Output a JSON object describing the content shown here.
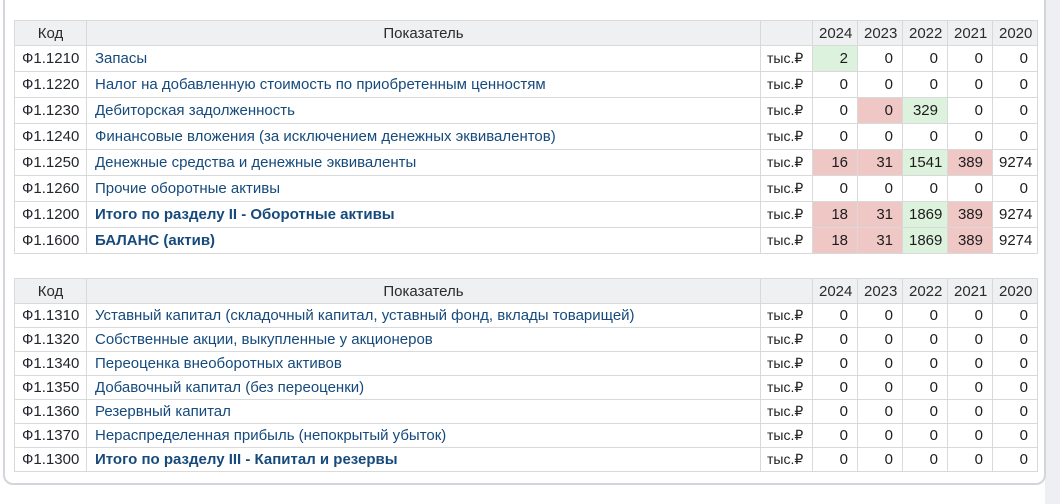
{
  "colors": {
    "positive_cell_bg": "#ddf2dc",
    "negative_cell_bg": "#efc8c6",
    "header_bg": "#eff0f2",
    "indicator_text": "#164a7c",
    "grid_line": "#d9d9d9"
  },
  "columns": {
    "code": "Код",
    "indicator": "Показатель",
    "years": [
      "2024",
      "2023",
      "2022",
      "2021",
      "2020"
    ]
  },
  "unit_label": "тыс.₽",
  "tables": [
    {
      "name": "assets-current-section",
      "rows": [
        {
          "code": "Ф1.1210",
          "name": "Запасы",
          "bold": false,
          "values": [
            2,
            0,
            0,
            0,
            0
          ],
          "trend": [
            "up",
            "same",
            "same",
            "same",
            "same"
          ]
        },
        {
          "code": "Ф1.1220",
          "name": "Налог на добавленную стоимость по приобретенным ценностям",
          "bold": false,
          "values": [
            0,
            0,
            0,
            0,
            0
          ],
          "trend": [
            "same",
            "same",
            "same",
            "same",
            "same"
          ]
        },
        {
          "code": "Ф1.1230",
          "name": "Дебиторская задолженность",
          "bold": false,
          "values": [
            0,
            0,
            329,
            0,
            0
          ],
          "trend": [
            "same",
            "down",
            "up",
            "same",
            "same"
          ]
        },
        {
          "code": "Ф1.1240",
          "name": "Финансовые вложения (за исключением денежных эквивалентов)",
          "bold": false,
          "values": [
            0,
            0,
            0,
            0,
            0
          ],
          "trend": [
            "same",
            "same",
            "same",
            "same",
            "same"
          ]
        },
        {
          "code": "Ф1.1250",
          "name": "Денежные средства и денежные эквиваленты",
          "bold": false,
          "values": [
            16,
            31,
            1541,
            389,
            9274
          ],
          "trend": [
            "down",
            "down",
            "up",
            "down",
            "same"
          ]
        },
        {
          "code": "Ф1.1260",
          "name": "Прочие оборотные активы",
          "bold": false,
          "values": [
            0,
            0,
            0,
            0,
            0
          ],
          "trend": [
            "same",
            "same",
            "same",
            "same",
            "same"
          ]
        },
        {
          "code": "Ф1.1200",
          "name": "Итого по разделу II - Оборотные активы",
          "bold": true,
          "values": [
            18,
            31,
            1869,
            389,
            9274
          ],
          "trend": [
            "down",
            "down",
            "up",
            "down",
            "same"
          ]
        },
        {
          "code": "Ф1.1600",
          "name": "БАЛАНС (актив)",
          "bold": true,
          "values": [
            18,
            31,
            1869,
            389,
            9274
          ],
          "trend": [
            "down",
            "down",
            "up",
            "down",
            "same"
          ]
        }
      ]
    },
    {
      "name": "equity-section",
      "rows": [
        {
          "code": "Ф1.1310",
          "name": "Уставный капитал (складочный капитал, уставный фонд, вклады товарищей)",
          "bold": false,
          "values": [
            0,
            0,
            0,
            0,
            0
          ],
          "trend": [
            "same",
            "same",
            "same",
            "same",
            "same"
          ]
        },
        {
          "code": "Ф1.1320",
          "name": "Собственные акции, выкупленные у акционеров",
          "bold": false,
          "values": [
            0,
            0,
            0,
            0,
            0
          ],
          "trend": [
            "same",
            "same",
            "same",
            "same",
            "same"
          ]
        },
        {
          "code": "Ф1.1340",
          "name": "Переоценка внеоборотных активов",
          "bold": false,
          "values": [
            0,
            0,
            0,
            0,
            0
          ],
          "trend": [
            "same",
            "same",
            "same",
            "same",
            "same"
          ]
        },
        {
          "code": "Ф1.1350",
          "name": "Добавочный капитал (без переоценки)",
          "bold": false,
          "values": [
            0,
            0,
            0,
            0,
            0
          ],
          "trend": [
            "same",
            "same",
            "same",
            "same",
            "same"
          ]
        },
        {
          "code": "Ф1.1360",
          "name": "Резервный капитал",
          "bold": false,
          "values": [
            0,
            0,
            0,
            0,
            0
          ],
          "trend": [
            "same",
            "same",
            "same",
            "same",
            "same"
          ]
        },
        {
          "code": "Ф1.1370",
          "name": "Нераспределенная прибыль (непокрытый убыток)",
          "bold": false,
          "values": [
            0,
            0,
            0,
            0,
            0
          ],
          "trend": [
            "same",
            "same",
            "same",
            "same",
            "same"
          ]
        },
        {
          "code": "Ф1.1300",
          "name": "Итого по разделу III - Капитал и резервы",
          "bold": true,
          "values": [
            0,
            0,
            0,
            0,
            0
          ],
          "trend": [
            "same",
            "same",
            "same",
            "same",
            "same"
          ]
        }
      ]
    }
  ]
}
